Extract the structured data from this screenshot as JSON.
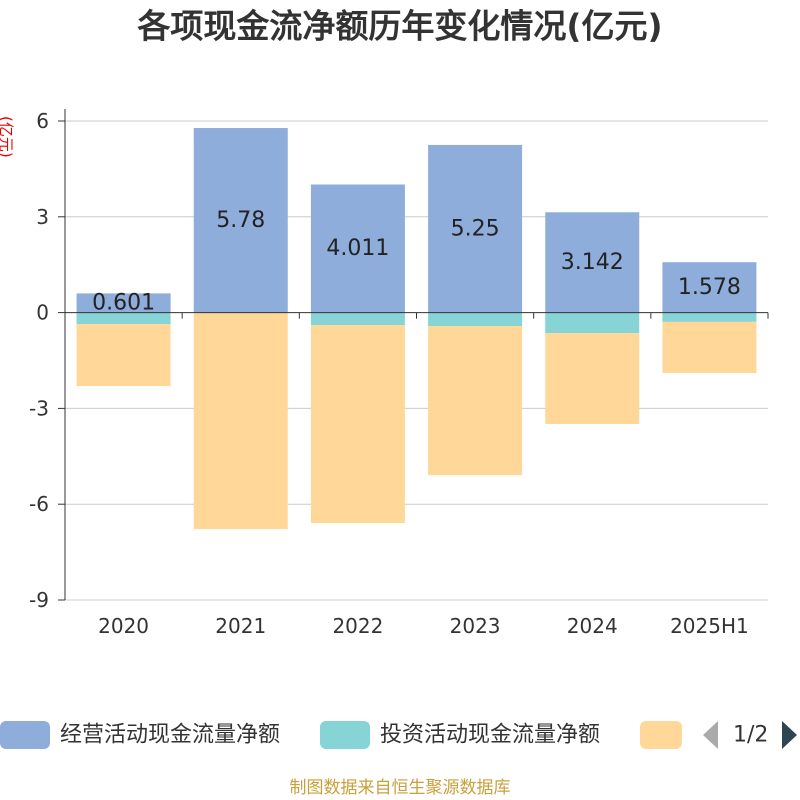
{
  "chart_data": {
    "type": "bar",
    "stacked": true,
    "title": "各项现金流净额历年变化情况(亿元)",
    "ylabel": "(亿元)",
    "categories": [
      "2020",
      "2021",
      "2022",
      "2023",
      "2024",
      "2025H1"
    ],
    "ylim": [
      -9,
      6
    ],
    "yticks": [
      6,
      3,
      0,
      -3,
      -6,
      -9
    ],
    "grid": true,
    "legend_position": "bottom",
    "series": [
      {
        "name": "经营活动现金流量净额",
        "color": "#8FADDB",
        "show_labels": true,
        "values": [
          0.601,
          5.78,
          4.011,
          5.25,
          3.142,
          1.578
        ]
      },
      {
        "name": "投资活动现金流量净额",
        "color": "#86D4D6",
        "values": [
          -0.36,
          0,
          -0.39,
          -0.42,
          -0.64,
          -0.29
        ]
      },
      {
        "color": "#FFD899",
        "values": [
          -1.94,
          -6.78,
          -6.2,
          -4.67,
          -2.85,
          -1.6
        ]
      }
    ]
  },
  "legend": {
    "pager": "1/2",
    "prev_icon": "triangle-left-icon",
    "next_icon": "triangle-right-icon"
  },
  "footer": {
    "source": "制图数据来自恒生聚源数据库"
  }
}
